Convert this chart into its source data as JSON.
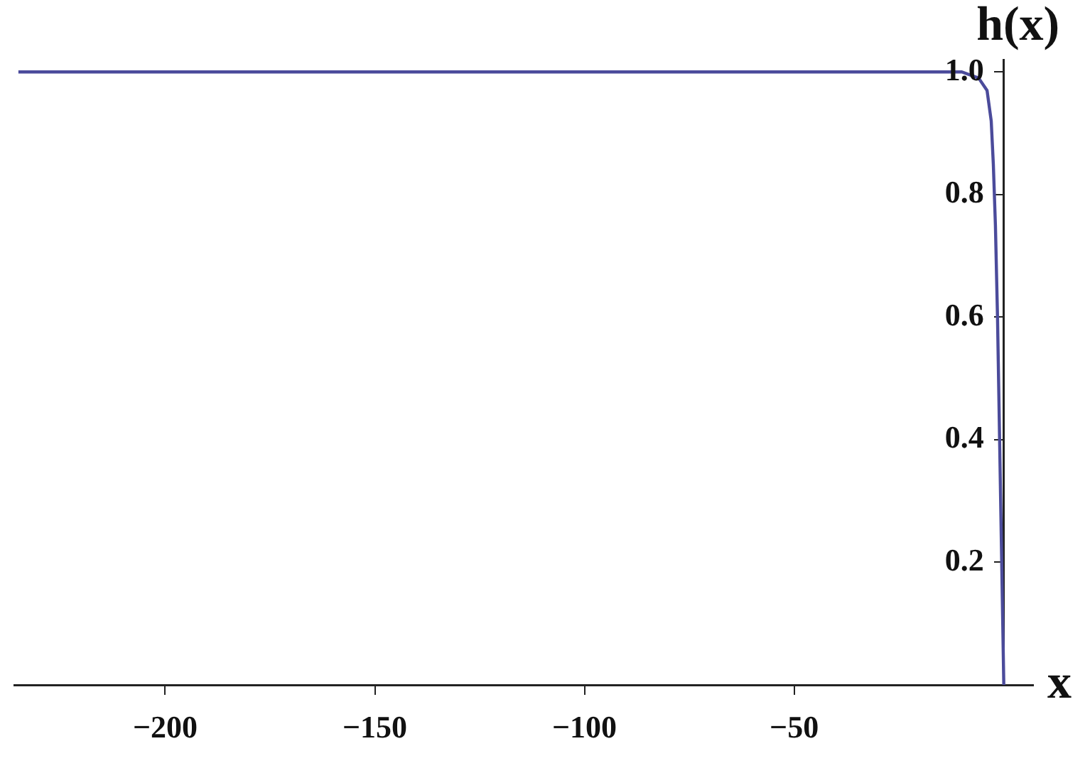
{
  "chart_data": {
    "type": "line",
    "xlabel": "x",
    "ylabel": "h(x)",
    "x": [
      -235,
      -10,
      -6,
      -4,
      -3,
      -2.5,
      -2,
      -1.5,
      -1,
      -0.5,
      0
    ],
    "series": [
      {
        "color": "#4b4b9b",
        "values": [
          1,
          1,
          0.99,
          0.97,
          0.92,
          0.85,
          0.75,
          0.6,
          0.4,
          0.2,
          0
        ]
      }
    ],
    "xlim": [
      -236,
      7
    ],
    "xticks": [
      {
        "value": -200,
        "label": "−200"
      },
      {
        "value": -150,
        "label": "−150"
      },
      {
        "value": -100,
        "label": "−100"
      },
      {
        "value": -50,
        "label": "−50"
      }
    ],
    "ylim": [
      0,
      1.02
    ],
    "yticks": [
      0.2,
      0.4,
      0.6,
      0.8,
      {
        "value": 1,
        "label": "1.0"
      }
    ],
    "grid": false,
    "legend": false,
    "marker": "none",
    "line_style": "solid"
  }
}
